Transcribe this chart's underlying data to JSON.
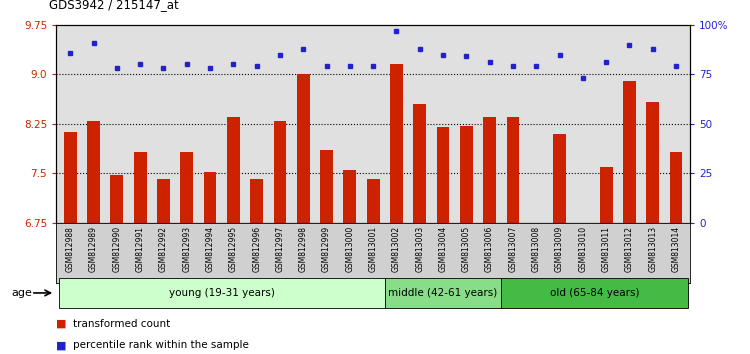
{
  "title": "GDS3942 / 215147_at",
  "samples": [
    "GSM812988",
    "GSM812989",
    "GSM812990",
    "GSM812991",
    "GSM812992",
    "GSM812993",
    "GSM812994",
    "GSM812995",
    "GSM812996",
    "GSM812997",
    "GSM812998",
    "GSM812999",
    "GSM813000",
    "GSM813001",
    "GSM813002",
    "GSM813003",
    "GSM813004",
    "GSM813005",
    "GSM813006",
    "GSM813007",
    "GSM813008",
    "GSM813009",
    "GSM813010",
    "GSM813011",
    "GSM813012",
    "GSM813013",
    "GSM813014"
  ],
  "bar_values": [
    8.12,
    8.3,
    7.48,
    7.82,
    7.42,
    7.82,
    7.52,
    8.35,
    7.42,
    8.3,
    9.01,
    7.85,
    7.55,
    7.42,
    9.15,
    8.55,
    8.2,
    8.22,
    8.35,
    8.35,
    6.72,
    8.1,
    6.72,
    7.6,
    8.9,
    8.58,
    7.82
  ],
  "dot_values": [
    86,
    91,
    78,
    80,
    78,
    80,
    78,
    80,
    79,
    85,
    88,
    79,
    79,
    79,
    97,
    88,
    85,
    84,
    81,
    79,
    79,
    85,
    73,
    81,
    90,
    88,
    79
  ],
  "ylim_left": [
    6.75,
    9.75
  ],
  "ylim_right": [
    0,
    100
  ],
  "yticks_left": [
    6.75,
    7.5,
    8.25,
    9.0,
    9.75
  ],
  "yticks_right": [
    0,
    25,
    50,
    75,
    100
  ],
  "ytick_labels_right": [
    "0",
    "25",
    "50",
    "75",
    "100%"
  ],
  "groups": [
    {
      "label": "young (19-31 years)",
      "start": 0,
      "end": 14,
      "color": "#ccffcc"
    },
    {
      "label": "middle (42-61 years)",
      "start": 14,
      "end": 19,
      "color": "#88dd88"
    },
    {
      "label": "old (65-84 years)",
      "start": 19,
      "end": 27,
      "color": "#44bb44"
    }
  ],
  "bar_color": "#cc2200",
  "dot_color": "#2222cc",
  "dot_color2": "#0000ff",
  "bar_width": 0.55,
  "plot_bg_color": "#e0e0e0",
  "xtick_bg_color": "#d0d0d0",
  "age_label": "age",
  "legend_bar": "transformed count",
  "legend_dot": "percentile rank within the sample"
}
